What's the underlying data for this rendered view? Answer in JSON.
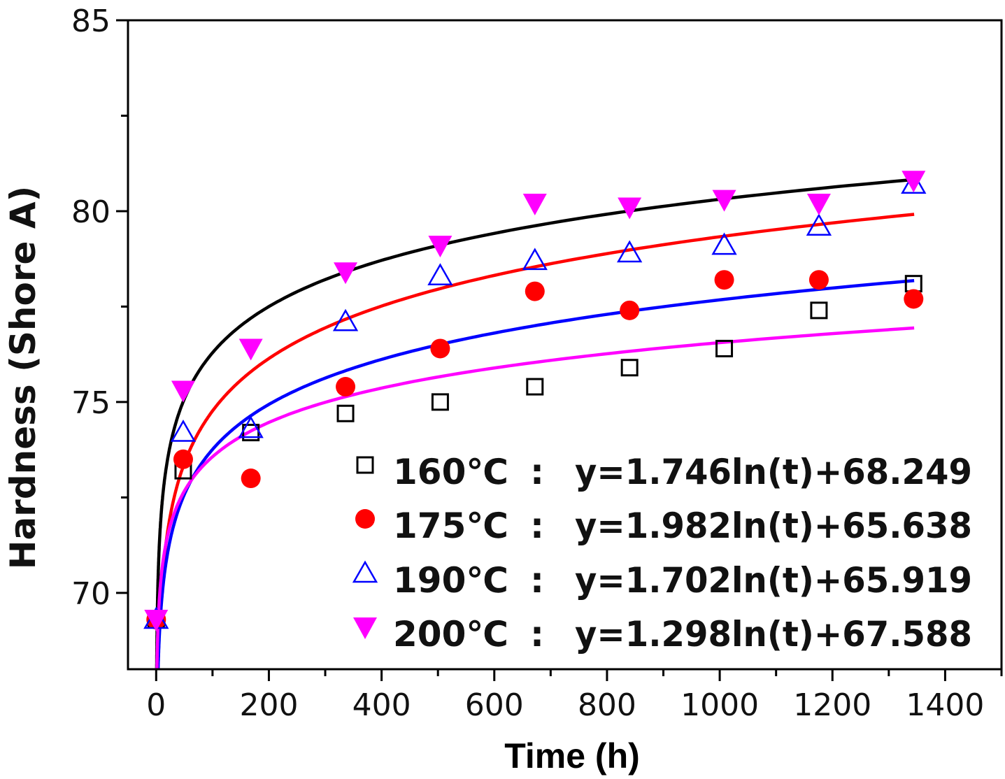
{
  "chart_data": {
    "type": "scatter",
    "title": "",
    "xlabel": "Time (h)",
    "ylabel": "Hardness (Shore A)",
    "xlim": [
      -50,
      1500
    ],
    "ylim": [
      68,
      85
    ],
    "xticks": [
      0,
      200,
      400,
      600,
      800,
      1000,
      1200,
      1400
    ],
    "xtick_labels": [
      "0",
      "200",
      "400",
      "600",
      "800",
      "1000",
      "1200",
      "1400"
    ],
    "yticks": [
      70,
      75,
      80,
      85
    ],
    "ytick_labels": [
      "70",
      "75",
      "80",
      "85"
    ],
    "grid": false,
    "legend_position": "bottom-right",
    "x": [
      0,
      48,
      168,
      336,
      504,
      672,
      840,
      1008,
      1176,
      1344
    ],
    "series": [
      {
        "name": "160℃",
        "separator": ":",
        "equation": "y=1.746ln(t)+68.249",
        "fit": {
          "a": 1.746,
          "b": 68.249
        },
        "marker": "open-square",
        "color": "#000000",
        "values": [
          69.3,
          73.2,
          74.2,
          74.7,
          75.0,
          75.4,
          75.9,
          76.4,
          77.4,
          78.1
        ]
      },
      {
        "name": "175℃",
        "separator": ":",
        "equation": "y=1.982ln(t)+65.638",
        "fit": {
          "a": 1.982,
          "b": 65.638
        },
        "marker": "filled-circle",
        "color": "#ff0000",
        "values": [
          69.3,
          73.5,
          73.0,
          75.4,
          76.4,
          77.9,
          77.4,
          78.2,
          78.2,
          77.7
        ]
      },
      {
        "name": "190℃",
        "separator": ":",
        "equation": "y=1.702ln(t)+65.919",
        "fit": {
          "a": 1.702,
          "b": 65.919
        },
        "marker": "open-triangle-up",
        "color": "#0000ff",
        "values": [
          69.3,
          74.2,
          74.3,
          77.1,
          78.3,
          78.7,
          78.9,
          79.1,
          79.6,
          80.7
        ]
      },
      {
        "name": "200℃",
        "separator": ":",
        "equation": "y=1.298ln(t)+67.588",
        "fit": {
          "a": 1.298,
          "b": 67.588
        },
        "marker": "filled-triangle-down",
        "color": "#ff00ff",
        "values": [
          69.3,
          75.3,
          76.4,
          78.4,
          79.1,
          80.2,
          80.1,
          80.3,
          80.2,
          80.8
        ]
      }
    ]
  }
}
